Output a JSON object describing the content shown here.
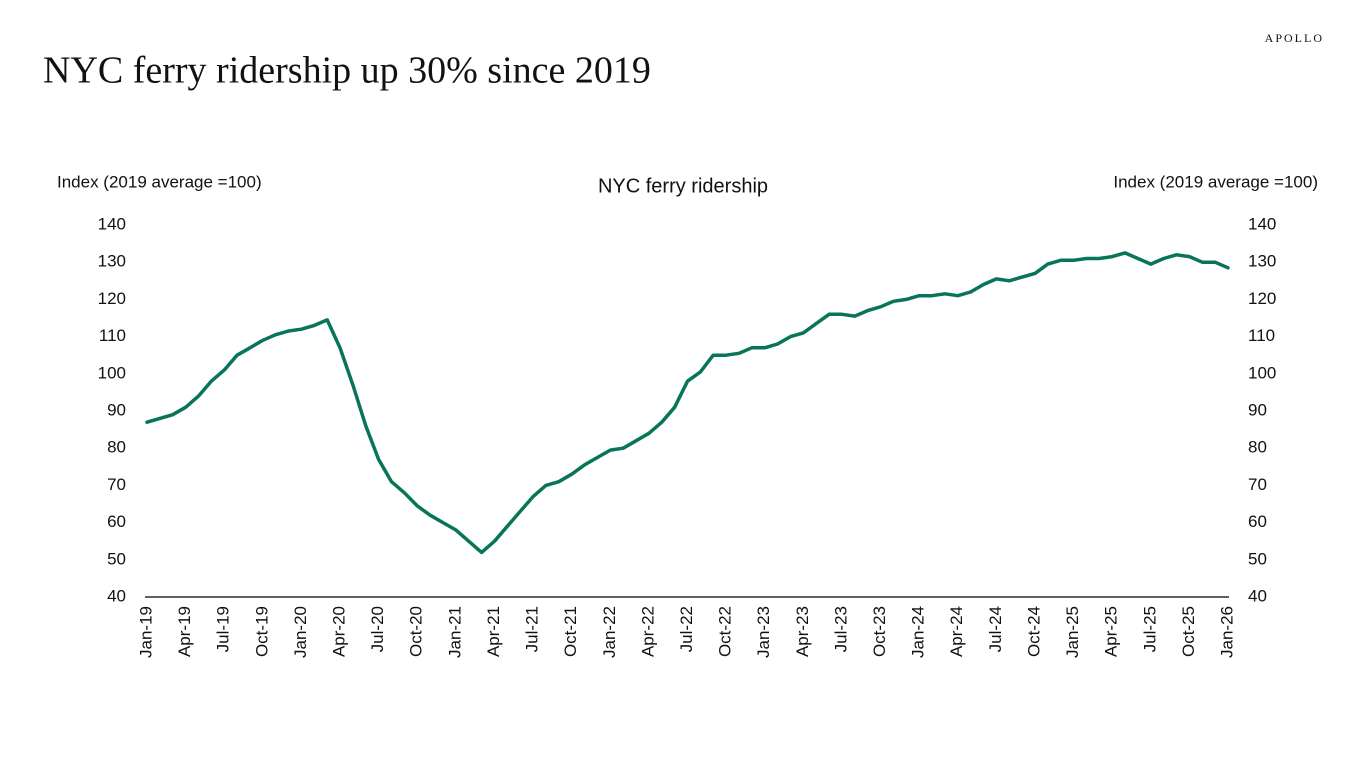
{
  "header": {
    "brand": "APOLLO"
  },
  "chart_data": {
    "type": "line",
    "title": "NYC ferry ridership up 30% since 2019",
    "subtitle": "NYC ferry ridership",
    "y_label": "Index (2019 average =100)",
    "y2_label": "Index (2019 average =100)",
    "x": [
      "Jan-19",
      null,
      null,
      "Apr-19",
      null,
      null,
      "Jul-19",
      null,
      null,
      "Oct-19",
      null,
      null,
      "Jan-20",
      null,
      null,
      "Apr-20",
      null,
      null,
      "Jul-20",
      null,
      null,
      "Oct-20",
      null,
      null,
      "Jan-21",
      null,
      null,
      "Apr-21",
      null,
      null,
      "Jul-21",
      null,
      null,
      "Oct-21",
      null,
      null,
      "Jan-22",
      null,
      null,
      "Apr-22",
      null,
      null,
      "Jul-22",
      null,
      null,
      "Oct-22",
      null,
      null,
      "Jan-23",
      null,
      null,
      "Apr-23",
      null,
      null,
      "Jul-23",
      null,
      null,
      "Oct-23",
      null,
      null,
      "Jan-24",
      null,
      null,
      "Apr-24",
      null,
      null,
      "Jul-24",
      null,
      null,
      "Oct-24",
      null,
      null,
      "Jan-25",
      null,
      null,
      "Apr-25",
      null,
      null,
      "Jul-25",
      null,
      null,
      "Oct-25",
      null,
      null,
      "Jan-26"
    ],
    "series": [
      {
        "name": "NYC ferry ridership",
        "color": "#08745a",
        "values": [
          87,
          88,
          89,
          91,
          94,
          98,
          101,
          105,
          107,
          109,
          110.5,
          111.5,
          112,
          113,
          114.5,
          107,
          97,
          86,
          77,
          71,
          68,
          64.5,
          62,
          60,
          58,
          55,
          52,
          55,
          59,
          63,
          67,
          70,
          71,
          73,
          75.5,
          77.5,
          79.5,
          80,
          82,
          84,
          87,
          91,
          98,
          100.5,
          105,
          105,
          105.5,
          107,
          107,
          108,
          110,
          111,
          113.5,
          116,
          116,
          115.5,
          117,
          118,
          119.5,
          120,
          121,
          121,
          121.5,
          121,
          122,
          124,
          125.5,
          125,
          126,
          127,
          129.5,
          130.5,
          130.5,
          131,
          131,
          131.5,
          132.5,
          131,
          129.5,
          131,
          132,
          131.5,
          130,
          130,
          128.5
        ]
      }
    ],
    "ylim": [
      40,
      140
    ],
    "yticks": [
      40,
      50,
      60,
      70,
      80,
      90,
      100,
      110,
      120,
      130,
      140
    ],
    "y2lim": [
      40,
      140
    ],
    "y2ticks": [
      40,
      50,
      60,
      70,
      80,
      90,
      100,
      110,
      120,
      130,
      140
    ],
    "grid": false
  }
}
